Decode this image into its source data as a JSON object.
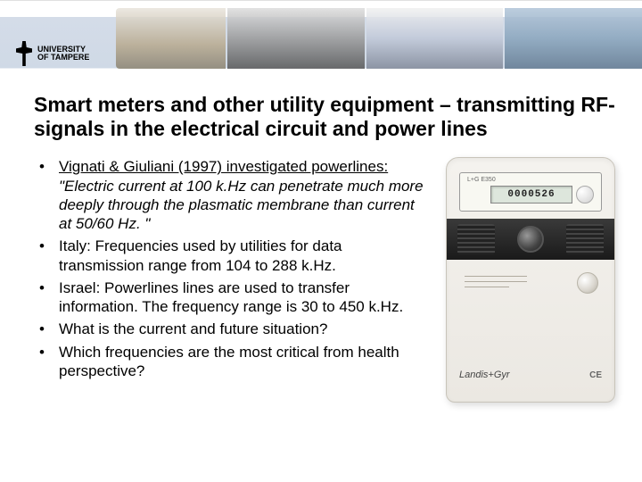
{
  "logo": {
    "line1": "UNIVERSITY",
    "line2": "OF TAMPERE"
  },
  "title": "Smart meters and other utility equipment – transmitting RF-signals in the electrical circuit and power lines",
  "bullets": [
    {
      "underlined": "Vignati & Giuliani (1997) investigated powerlines: ",
      "italic": "\"Electric current at 100 k.Hz can penetrate much more deeply through the plasmatic membrane than current at 50/60 Hz. \""
    },
    {
      "text": "Italy: Frequencies used by utilities for data transmission range from 104 to 288 k.Hz."
    },
    {
      "text": "Israel: Powerlines lines are used to transfer information. The frequency range is 30 to 450 k.Hz."
    },
    {
      "text": "What is the current and future situation?"
    },
    {
      "text": "Which frequencies are the most critical from health perspective?"
    }
  ],
  "meter": {
    "brand": "L+G E350",
    "lcd": "0000526",
    "foot_logo": "Landis+Gyr",
    "ce": "CE"
  }
}
